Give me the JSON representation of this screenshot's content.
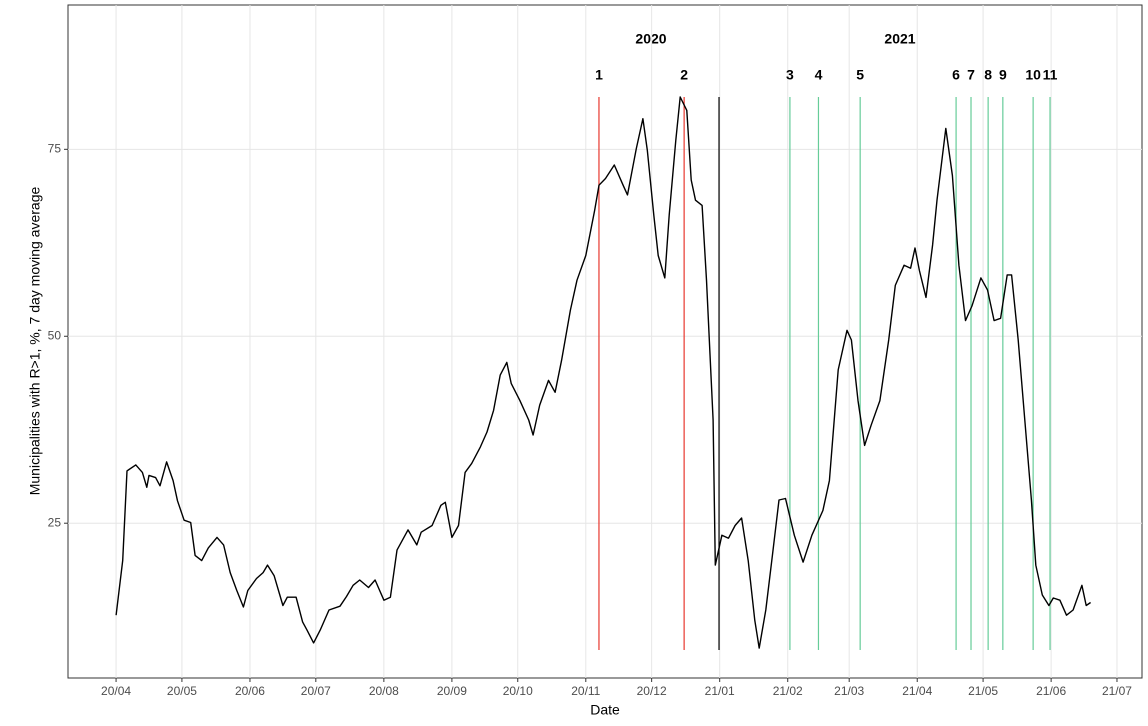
{
  "chart_data": {
    "type": "line",
    "x_label": "Date",
    "y_label": "Municipalities with R>1, %, 7 day moving average",
    "year_labels": [
      "2020",
      "2021"
    ],
    "xlim": [
      -21.9,
      467.4
    ],
    "xticks": [
      {
        "value": 0,
        "label": "20/04"
      },
      {
        "value": 30,
        "label": "20/05"
      },
      {
        "value": 61,
        "label": "20/06"
      },
      {
        "value": 91,
        "label": "20/07"
      },
      {
        "value": 122,
        "label": "20/08"
      },
      {
        "value": 153,
        "label": "20/09"
      },
      {
        "value": 183,
        "label": "20/10"
      },
      {
        "value": 214,
        "label": "20/11"
      },
      {
        "value": 244,
        "label": "20/12"
      },
      {
        "value": 275,
        "label": "21/01"
      },
      {
        "value": 306,
        "label": "21/02"
      },
      {
        "value": 334,
        "label": "21/03"
      },
      {
        "value": 365,
        "label": "21/04"
      },
      {
        "value": 395,
        "label": "21/05"
      },
      {
        "value": 426,
        "label": "21/06"
      },
      {
        "value": 456,
        "label": "21/07"
      }
    ],
    "ylim": [
      4.3,
      94.3
    ],
    "yticks": [
      25,
      50,
      75
    ],
    "grid": true,
    "color": "#000000",
    "x": [
      0,
      3,
      5,
      9,
      12,
      14,
      15,
      18,
      20,
      23,
      26,
      28,
      31,
      34,
      36,
      39,
      42,
      46,
      49,
      52,
      55,
      58,
      60,
      64,
      67,
      69,
      72,
      76,
      78,
      82,
      85,
      87,
      90,
      93,
      97,
      102,
      105,
      108,
      111,
      115,
      118,
      122,
      125,
      128,
      133,
      137,
      139,
      144,
      148,
      150,
      153,
      156,
      159,
      162,
      166,
      169,
      172,
      175,
      178,
      180,
      184,
      188,
      190,
      193,
      197,
      200,
      203,
      207,
      210,
      214,
      218,
      220,
      223,
      227,
      231,
      233,
      237,
      240,
      242,
      245,
      247,
      250,
      252,
      255,
      257,
      260,
      262,
      264,
      267,
      269,
      272,
      273,
      276,
      279,
      282,
      285,
      288,
      291,
      293,
      296,
      299,
      302,
      305,
      309,
      313,
      317,
      322,
      325,
      329,
      333,
      335,
      338,
      341,
      344,
      348,
      352,
      355,
      359,
      362,
      364,
      366,
      369,
      372,
      374,
      378,
      381,
      384,
      387,
      390,
      394,
      397,
      400,
      403,
      406,
      408,
      411,
      414,
      417,
      419,
      422,
      425,
      427,
      430,
      433,
      436,
      440,
      442,
      444
    ],
    "values": [
      12.7,
      20,
      32,
      32.8,
      31.8,
      29.8,
      31.4,
      31.1,
      30,
      33.2,
      30.7,
      28,
      25.4,
      25.1,
      20.7,
      20,
      21.7,
      23.1,
      22.1,
      18.4,
      16,
      13.8,
      16,
      17.6,
      18.4,
      19.4,
      18,
      14,
      15.1,
      15.1,
      11.8,
      10.7,
      9,
      10.7,
      13.4,
      13.9,
      15.2,
      16.7,
      17.4,
      16.4,
      17.4,
      14.7,
      15.1,
      21.4,
      24.1,
      22.1,
      23.8,
      24.7,
      27.4,
      27.8,
      23.1,
      24.7,
      31.8,
      33,
      35.2,
      37.2,
      40.1,
      44.8,
      46.5,
      43.7,
      41.4,
      38.8,
      36.8,
      40.8,
      44.1,
      42.5,
      46.8,
      53.5,
      57.5,
      60.8,
      66.8,
      70.2,
      71.1,
      72.9,
      70.2,
      68.9,
      75.1,
      79.1,
      74.9,
      66.2,
      60.8,
      57.8,
      66.2,
      76.2,
      82,
      80.2,
      70.9,
      68.2,
      67.5,
      57.5,
      38.8,
      19.4,
      23.4,
      23,
      24.7,
      25.7,
      20,
      12,
      8.3,
      13.4,
      20.7,
      28.1,
      28.3,
      23.4,
      19.8,
      23.4,
      26.7,
      30.7,
      45.5,
      50.8,
      49.5,
      41.4,
      35.4,
      38.1,
      41.4,
      49.5,
      56.8,
      59.5,
      59.1,
      61.8,
      58.8,
      55.2,
      62.2,
      68.2,
      77.8,
      71.5,
      59.5,
      52.1,
      54.1,
      57.8,
      56.2,
      52.1,
      52.4,
      58.2,
      58.2,
      49.5,
      38.8,
      28.1,
      19.4,
      15.4,
      14,
      15,
      14.7,
      12.7,
      13.4,
      16.7,
      14,
      14.4
    ],
    "events": [
      {
        "label": "1",
        "x": 220,
        "color": "#e8382f"
      },
      {
        "label": "2",
        "x": 258.8,
        "color": "#e8382f"
      },
      {
        "x": 274.7,
        "color": "#000000"
      },
      {
        "label": "3",
        "x": 307,
        "color": "#66cc99"
      },
      {
        "label": "4",
        "x": 320,
        "color": "#66cc99"
      },
      {
        "label": "5",
        "x": 339,
        "color": "#66cc99"
      },
      {
        "label": "6",
        "x": 382.7,
        "color": "#66cc99"
      },
      {
        "label": "7",
        "x": 389.5,
        "color": "#66cc99"
      },
      {
        "label": "8",
        "x": 397.3,
        "color": "#66cc99"
      },
      {
        "label": "9",
        "x": 404,
        "color": "#66cc99"
      },
      {
        "label": "10",
        "x": 417.8,
        "color": "#66cc99"
      },
      {
        "label": "11",
        "x": 425.5,
        "color": "#66cc99"
      }
    ]
  }
}
